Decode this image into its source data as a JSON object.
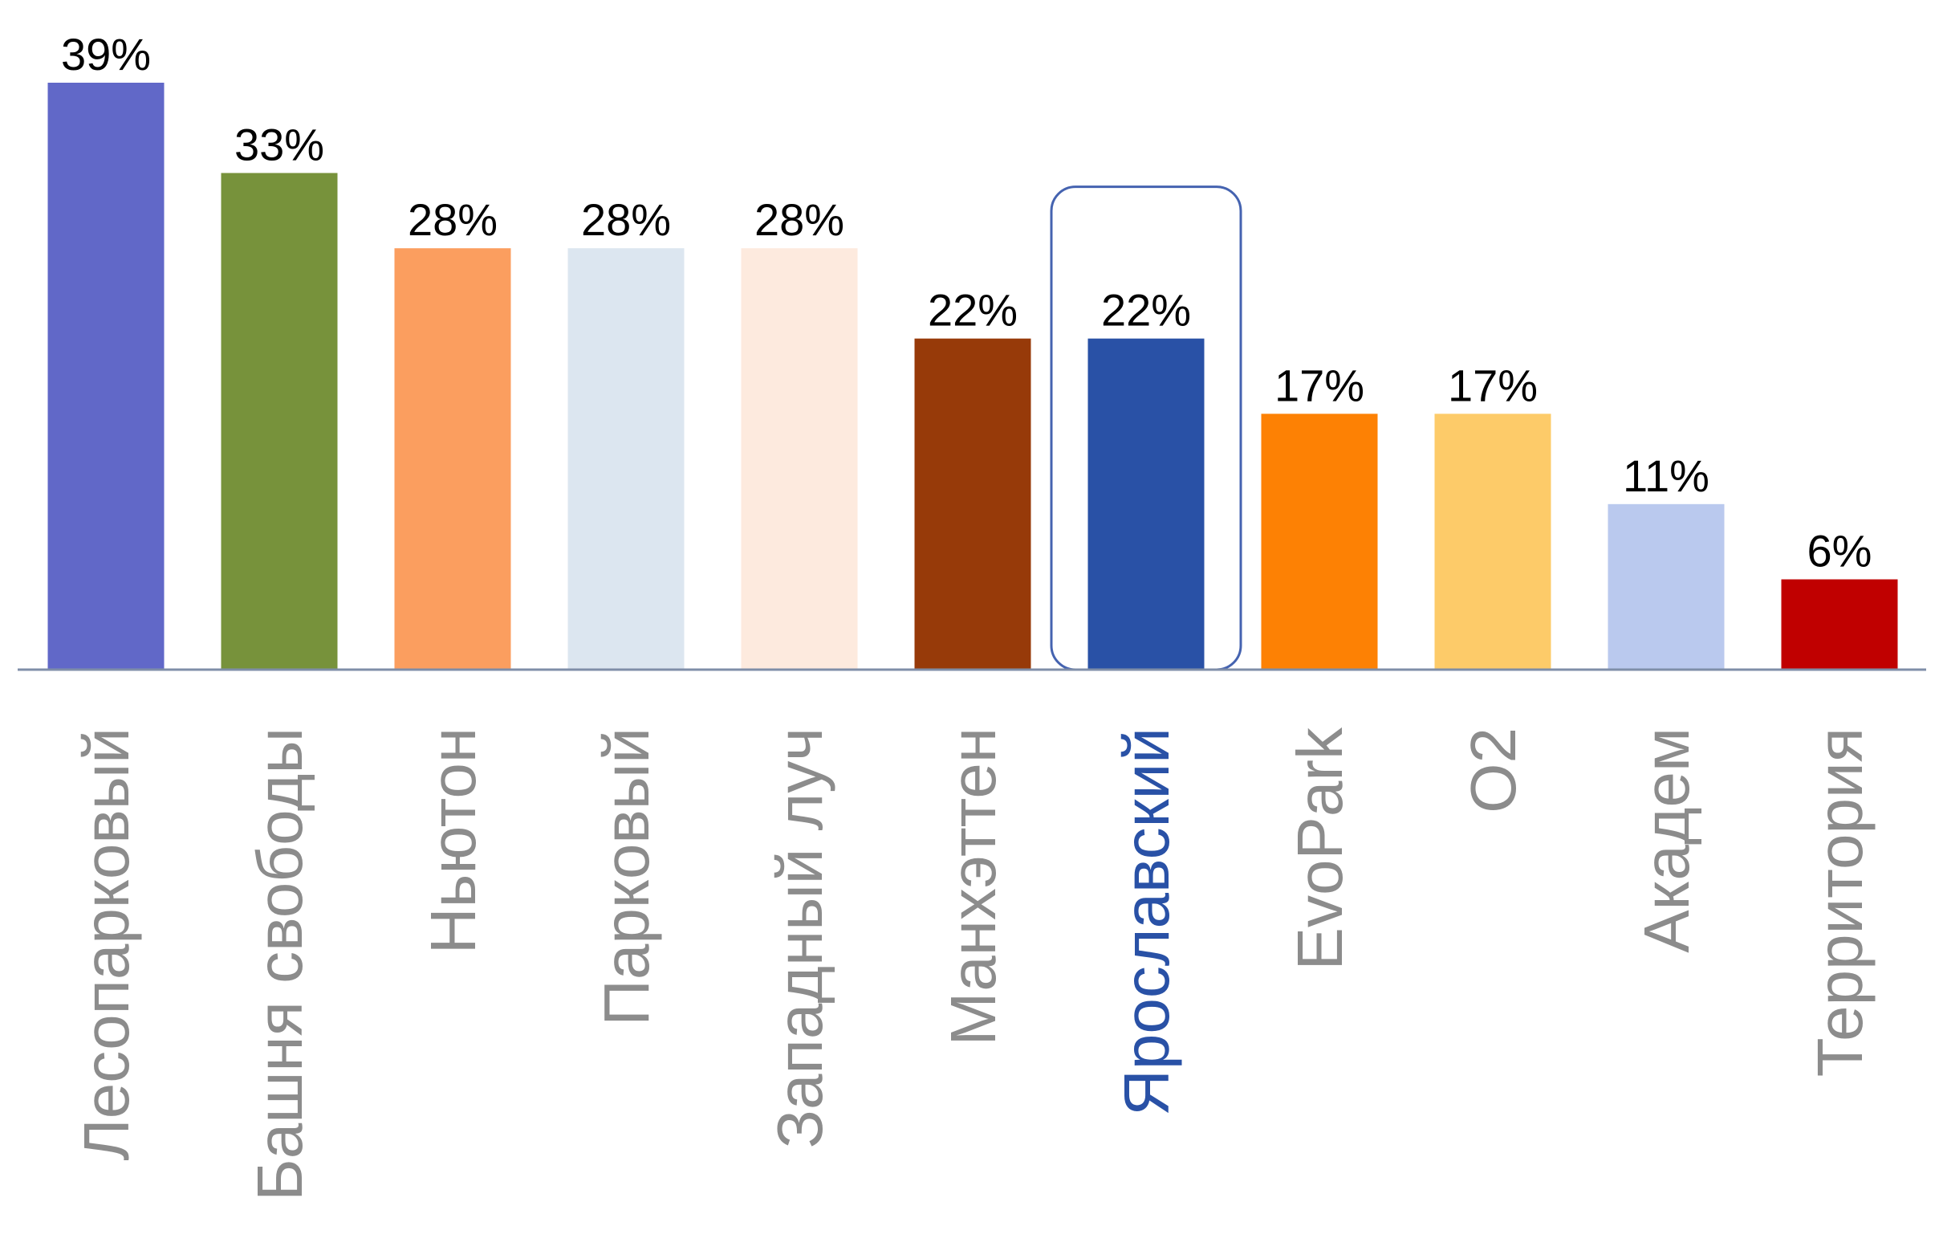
{
  "chart_data": {
    "type": "bar",
    "categories": [
      "Лесопарковый",
      "Башня свободы",
      "Ньютон",
      "Парковый",
      "Западный луч",
      "Манхэттен",
      "Ярославский",
      "EvoPark",
      "O2",
      "Академ",
      "Территория"
    ],
    "values": [
      39,
      33,
      28,
      28,
      28,
      22,
      22,
      17,
      17,
      11,
      6
    ],
    "data_labels": [
      "39%",
      "33%",
      "28%",
      "28%",
      "28%",
      "22%",
      "22%",
      "17%",
      "17%",
      "11%",
      "6%"
    ],
    "unit": "%",
    "title": "",
    "xlabel": "",
    "ylabel": "",
    "ylim": [
      0,
      39
    ],
    "grid": false,
    "highlighted_category": "Ярославский",
    "colors": [
      "#6168c8",
      "#77923b",
      "#fb9e5f",
      "#dce6f0",
      "#fdeade",
      "#973a09",
      "#2951a6",
      "#fd8104",
      "#fdcb69",
      "#bac9ee",
      "#c00000"
    ],
    "label_colors": {
      "default": "#8c8c8c",
      "highlighted": "#2951a6",
      "value": "#000000"
    },
    "highlight_box_color": "#4563b0",
    "axis_color": "#7f8ea8"
  }
}
